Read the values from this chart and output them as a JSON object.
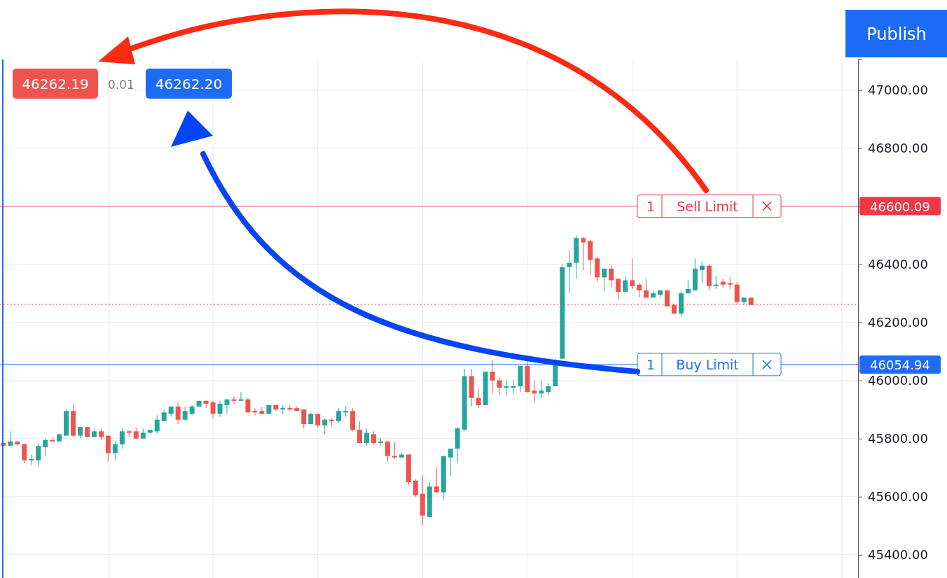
{
  "chart_data": {
    "type": "candlestick",
    "categories": [
      null,
      null,
      null,
      null,
      null,
      null,
      null,
      null,
      null,
      null,
      null,
      null,
      null,
      null,
      null,
      null,
      null,
      null,
      null,
      null,
      null,
      null,
      null,
      null,
      null,
      null,
      null,
      null,
      null,
      null,
      null,
      null,
      null,
      null,
      null,
      null,
      null,
      null,
      null,
      null,
      null,
      null,
      null,
      null,
      null,
      null,
      null,
      null,
      null,
      null,
      null,
      null,
      null,
      null,
      null,
      null,
      null,
      null,
      null,
      null,
      null,
      null,
      null,
      null,
      null,
      null,
      null,
      null,
      null,
      null,
      null,
      null,
      null,
      null,
      null,
      null,
      null,
      null,
      null,
      null,
      null,
      null,
      null,
      null,
      null,
      null,
      null,
      null,
      null,
      null,
      null,
      null,
      null,
      null,
      null,
      null,
      null,
      null,
      null,
      null,
      null,
      null,
      null,
      null,
      null,
      null,
      null,
      null,
      null,
      null,
      null,
      null,
      null,
      null,
      null,
      null,
      null,
      null,
      null,
      null,
      null,
      null
    ],
    "ohlc": [
      [
        45785,
        45785,
        45775,
        45775
      ],
      [
        45775,
        45825,
        45775,
        45790
      ],
      [
        45790,
        45790,
        45775,
        45780
      ],
      [
        45780,
        45785,
        45715,
        45725
      ],
      [
        45725,
        45745,
        45710,
        45730
      ],
      [
        45725,
        45780,
        45705,
        45775
      ],
      [
        45770,
        45800,
        45740,
        45795
      ],
      [
        45795,
        45800,
        45790,
        45790
      ],
      [
        45790,
        45815,
        45790,
        45815
      ],
      [
        45810,
        45900,
        45810,
        45895
      ],
      [
        45895,
        45920,
        45805,
        45810
      ],
      [
        45810,
        45840,
        45800,
        45840
      ],
      [
        45840,
        45840,
        45805,
        45805
      ],
      [
        45805,
        45835,
        45805,
        45825
      ],
      [
        45825,
        45835,
        45795,
        45805
      ],
      [
        45810,
        45810,
        45720,
        45750
      ],
      [
        45750,
        45790,
        45725,
        45780
      ],
      [
        45780,
        45835,
        45765,
        45825
      ],
      [
        45825,
        45830,
        45805,
        45820
      ],
      [
        45825,
        45840,
        45800,
        45800
      ],
      [
        45800,
        45835,
        45800,
        45820
      ],
      [
        45820,
        45830,
        45815,
        45830
      ],
      [
        45825,
        45880,
        45815,
        45865
      ],
      [
        45860,
        45900,
        45860,
        45890
      ],
      [
        45885,
        45910,
        45875,
        45910
      ],
      [
        45910,
        45925,
        45850,
        45865
      ],
      [
        45865,
        45910,
        45860,
        45895
      ],
      [
        45885,
        45915,
        45880,
        45910
      ],
      [
        45910,
        45930,
        45910,
        45930
      ],
      [
        45930,
        45930,
        45905,
        45920
      ],
      [
        45925,
        45930,
        45870,
        45885
      ],
      [
        45885,
        45930,
        45875,
        45920
      ],
      [
        45915,
        45935,
        45885,
        45935
      ],
      [
        45935,
        45945,
        45920,
        45930
      ],
      [
        45930,
        45960,
        45930,
        45935
      ],
      [
        45935,
        45940,
        45890,
        45890
      ],
      [
        45895,
        45905,
        45880,
        45890
      ],
      [
        45895,
        45910,
        45885,
        45885
      ],
      [
        45885,
        45915,
        45885,
        45915
      ],
      [
        45915,
        45915,
        45895,
        45900
      ],
      [
        45900,
        45915,
        45885,
        45905
      ],
      [
        45905,
        45915,
        45895,
        45900
      ],
      [
        45905,
        45910,
        45895,
        45895
      ],
      [
        45900,
        45900,
        45835,
        45850
      ],
      [
        45850,
        45890,
        45850,
        45885
      ],
      [
        45885,
        45885,
        45840,
        45845
      ],
      [
        45845,
        45870,
        45815,
        45865
      ],
      [
        45865,
        45870,
        45845,
        45860
      ],
      [
        45860,
        45905,
        45855,
        45895
      ],
      [
        45890,
        45910,
        45875,
        45895
      ],
      [
        45895,
        45905,
        45825,
        45830
      ],
      [
        45830,
        45860,
        45785,
        45785
      ],
      [
        45785,
        45835,
        45775,
        45820
      ],
      [
        45815,
        45825,
        45780,
        45785
      ],
      [
        45785,
        45800,
        45775,
        45790
      ],
      [
        45790,
        45790,
        45720,
        45740
      ],
      [
        45740,
        45790,
        45730,
        45735
      ],
      [
        45735,
        45750,
        45735,
        45745
      ],
      [
        45745,
        45745,
        45640,
        45650
      ],
      [
        45655,
        45660,
        45600,
        45605
      ],
      [
        45610,
        45675,
        45500,
        45535
      ],
      [
        45530,
        45650,
        45530,
        45635
      ],
      [
        45635,
        45700,
        45615,
        45615
      ],
      [
        45615,
        45740,
        45590,
        45740
      ],
      [
        45735,
        45765,
        45670,
        45765
      ],
      [
        45765,
        45840,
        45715,
        45835
      ],
      [
        45830,
        46040,
        45825,
        46015
      ],
      [
        46015,
        46040,
        45910,
        45940
      ],
      [
        45940,
        45970,
        45905,
        45915
      ],
      [
        45915,
        46030,
        45915,
        46030
      ],
      [
        46030,
        46070,
        45955,
        46000
      ],
      [
        46000,
        46010,
        45950,
        45975
      ],
      [
        45975,
        46000,
        45950,
        45980
      ],
      [
        45975,
        46000,
        45955,
        45980
      ],
      [
        45980,
        46050,
        45960,
        46050
      ],
      [
        46050,
        46070,
        45960,
        45960
      ],
      [
        45965,
        46000,
        45925,
        45955
      ],
      [
        45955,
        46000,
        45940,
        45965
      ],
      [
        45960,
        45990,
        45950,
        45980
      ],
      [
        45980,
        46075,
        45980,
        46055
      ],
      [
        46075,
        46400,
        46075,
        46390
      ],
      [
        46390,
        46450,
        46300,
        46405
      ],
      [
        46405,
        46500,
        46350,
        46490
      ],
      [
        46490,
        46495,
        46380,
        46475
      ],
      [
        46480,
        46485,
        46365,
        46415
      ],
      [
        46420,
        46425,
        46340,
        46355
      ],
      [
        46355,
        46385,
        46310,
        46385
      ],
      [
        46385,
        46400,
        46320,
        46345
      ],
      [
        46350,
        46350,
        46280,
        46305
      ],
      [
        46305,
        46360,
        46305,
        46345
      ],
      [
        46345,
        46420,
        46315,
        46325
      ],
      [
        46330,
        46335,
        46285,
        46310
      ],
      [
        46310,
        46350,
        46285,
        46285
      ],
      [
        46285,
        46310,
        46285,
        46300
      ],
      [
        46295,
        46310,
        46285,
        46310
      ],
      [
        46310,
        46310,
        46255,
        46255
      ],
      [
        46260,
        46265,
        46230,
        46230
      ],
      [
        46230,
        46310,
        46220,
        46300
      ],
      [
        46300,
        46345,
        46300,
        46315
      ],
      [
        46310,
        46420,
        46310,
        46385
      ],
      [
        46380,
        46410,
        46335,
        46395
      ],
      [
        46395,
        46400,
        46310,
        46325
      ],
      [
        46325,
        46360,
        46315,
        46330
      ],
      [
        46340,
        46350,
        46320,
        46330
      ],
      [
        46335,
        46355,
        46315,
        46330
      ],
      [
        46330,
        46340,
        46265,
        46270
      ],
      [
        46270,
        46285,
        46260,
        46285
      ],
      [
        46285,
        46285,
        46260,
        46260
      ],
      null,
      null,
      null,
      null,
      null,
      null,
      null,
      null,
      null,
      null,
      null,
      null,
      null,
      null
    ],
    "ylim": [
      45320,
      47105
    ],
    "yticks": [
      {
        "value": 45400,
        "label": "45400.00"
      },
      {
        "value": 45600,
        "label": "45600.00"
      },
      {
        "value": 45800,
        "label": "45800.00"
      },
      {
        "value": 46000,
        "label": "46000.00"
      },
      {
        "value": 46200,
        "label": "46200.00"
      },
      {
        "value": 46400,
        "label": "46400.00"
      },
      {
        "value": 46600,
        "label": null
      },
      {
        "value": 46800,
        "label": "46800.00"
      },
      {
        "value": 47000,
        "label": "47000.00"
      }
    ],
    "grid": true,
    "ref_lines": [
      {
        "axis": "y",
        "value": 46600.09,
        "label": "Sell Limit",
        "color": "#f23645",
        "line_style": "solid"
      },
      {
        "axis": "y",
        "value": 46054.94,
        "label": "Buy Limit",
        "color": "#1e6cf5",
        "line_style": "solid"
      },
      {
        "axis": "y",
        "value": 46262,
        "label": null,
        "color": "#f23645",
        "line_style": "dotted"
      }
    ],
    "annotations": [
      "46262.19",
      "0.01",
      "46262.20",
      "Publish",
      "46600.09",
      "46054.94",
      {
        "text": "1",
        "y": 46600.09
      },
      {
        "text": "1",
        "y": 46054.94
      }
    ]
  }
}
